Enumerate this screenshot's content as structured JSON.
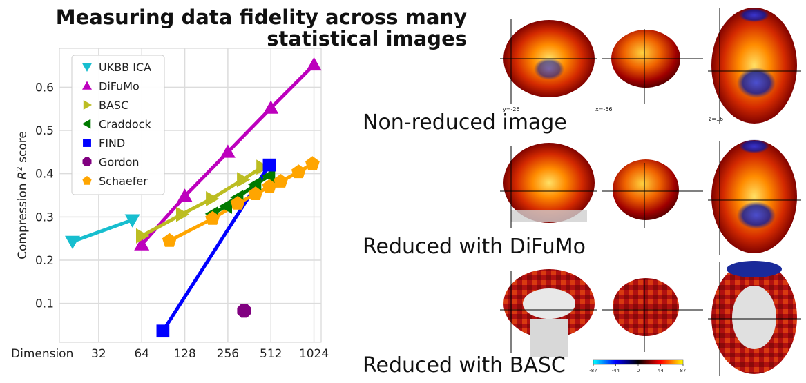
{
  "title": "Measuring data fidelity across many statistical images",
  "chart_data": {
    "type": "line",
    "ylabel": "Compression R² score",
    "xlabel_prefix": "Dimension",
    "x_scale": "log2",
    "x_ticks": [
      "32",
      "64",
      "128",
      "256",
      "512",
      "1024"
    ],
    "y_ticks": [
      "0.1",
      "0.2",
      "0.3",
      "0.4",
      "0.5",
      "0.6"
    ],
    "xlim": [
      17,
      1150
    ],
    "ylim": [
      0.01,
      0.69
    ],
    "grid": true,
    "legend_position": "upper-left",
    "series": [
      {
        "name": "UKBB ICA",
        "color": "#17becf",
        "marker": "triangle-down",
        "points": [
          [
            21,
            0.243
          ],
          [
            55,
            0.293
          ]
        ]
      },
      {
        "name": "DiFuMo",
        "color": "#bd00bd",
        "marker": "triangle-up",
        "points": [
          [
            64,
            0.236
          ],
          [
            128,
            0.348
          ],
          [
            256,
            0.45
          ],
          [
            512,
            0.552
          ],
          [
            1024,
            0.652
          ]
        ]
      },
      {
        "name": "BASC",
        "color": "#bcbd22",
        "marker": "triangle-right",
        "points": [
          [
            64,
            0.256
          ],
          [
            122,
            0.306
          ],
          [
            197,
            0.342
          ],
          [
            325,
            0.386
          ],
          [
            444,
            0.415
          ]
        ]
      },
      {
        "name": "Craddock",
        "color": "#007a00",
        "marker": "triangle-left",
        "points": [
          [
            200,
            0.307
          ],
          [
            250,
            0.325
          ],
          [
            300,
            0.345
          ],
          [
            400,
            0.375
          ],
          [
            500,
            0.395
          ]
        ]
      },
      {
        "name": "FIND",
        "color": "#0000ff",
        "marker": "square",
        "points": [
          [
            90,
            0.036
          ],
          [
            499,
            0.42
          ]
        ]
      },
      {
        "name": "Gordon",
        "color": "#800080",
        "marker": "octagon",
        "points": [
          [
            333,
            0.083
          ]
        ]
      },
      {
        "name": "Schaefer",
        "color": "#ffa500",
        "marker": "pentagon",
        "points": [
          [
            100,
            0.245
          ],
          [
            200,
            0.296
          ],
          [
            300,
            0.331
          ],
          [
            400,
            0.353
          ],
          [
            500,
            0.37
          ],
          [
            600,
            0.382
          ],
          [
            800,
            0.404
          ],
          [
            1000,
            0.423
          ]
        ]
      }
    ]
  },
  "brain_panels": [
    {
      "caption": "Non-reduced image",
      "coords": [
        "y=-26",
        "x=-56",
        "z=16"
      ]
    },
    {
      "caption": "Reduced with DiFuMo"
    },
    {
      "caption": "Reduced with BASC"
    }
  ],
  "colorbar": {
    "ticks": [
      "-87",
      "-44",
      "0",
      "44",
      "87"
    ]
  }
}
